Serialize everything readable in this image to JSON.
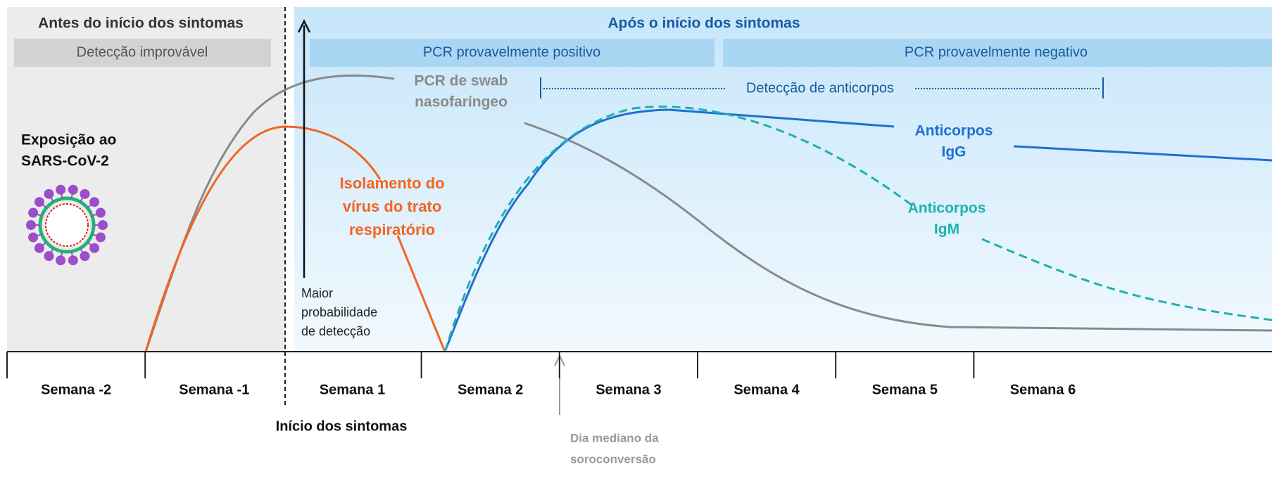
{
  "header": {
    "before": "Antes do início dos sintomas",
    "after": "Após o início dos sintomas"
  },
  "bands": {
    "unlikely": "Detecção improvável",
    "pcr_positive": "PCR provavelmente positivo",
    "pcr_negative": "PCR provavelmente negativo"
  },
  "labels": {
    "pcr_swab": [
      "PCR de swab",
      "nasofaríngeo"
    ],
    "antibody_detection": "Detecção de anticorpos",
    "exposure": [
      "Exposição ao",
      "SARS-CoV-2"
    ],
    "isolation": [
      "Isolamento do",
      "vírus do trato",
      "respiratório"
    ],
    "igg": [
      "Anticorpos",
      "IgG"
    ],
    "igm": [
      "Anticorpos",
      "IgM"
    ],
    "probability": [
      "Maior",
      "probabilidade",
      "de detecção"
    ],
    "onset": "Início dos sintomas",
    "seroconversion": [
      "Dia mediano da",
      "soroconversão"
    ]
  },
  "weeks": [
    "Semana -2",
    "Semana -1",
    "Semana 1",
    "Semana 2",
    "Semana 3",
    "Semana 4",
    "Semana 5",
    "Semana 6"
  ]
}
